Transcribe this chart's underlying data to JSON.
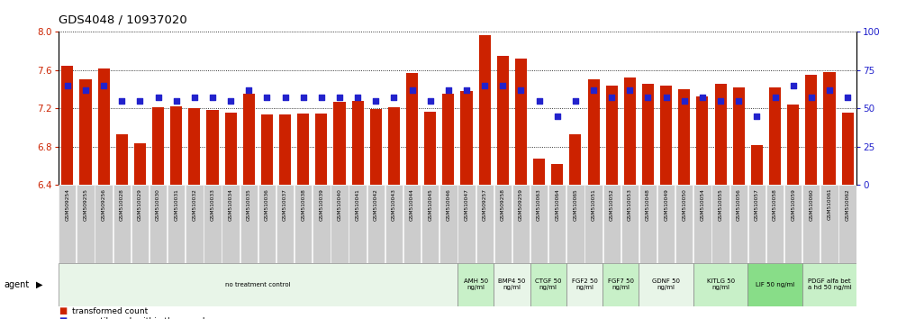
{
  "title": "GDS4048 / 10937020",
  "ylim_left": [
    6.4,
    8.0
  ],
  "ylim_right": [
    0,
    100
  ],
  "yticks_left": [
    6.4,
    6.8,
    7.2,
    7.6,
    8.0
  ],
  "yticks_right": [
    0,
    25,
    50,
    75,
    100
  ],
  "bar_color": "#cc2200",
  "dot_color": "#2222cc",
  "samples": [
    "GSM509254",
    "GSM509255",
    "GSM509256",
    "GSM510028",
    "GSM510029",
    "GSM510030",
    "GSM510031",
    "GSM510032",
    "GSM510033",
    "GSM510034",
    "GSM510035",
    "GSM510036",
    "GSM510037",
    "GSM510038",
    "GSM510039",
    "GSM510040",
    "GSM510041",
    "GSM510042",
    "GSM510043",
    "GSM510044",
    "GSM510045",
    "GSM510046",
    "GSM510047",
    "GSM509257",
    "GSM509258",
    "GSM509259",
    "GSM510063",
    "GSM510064",
    "GSM510065",
    "GSM510051",
    "GSM510052",
    "GSM510053",
    "GSM510048",
    "GSM510049",
    "GSM510050",
    "GSM510054",
    "GSM510055",
    "GSM510056",
    "GSM510057",
    "GSM510058",
    "GSM510059",
    "GSM510060",
    "GSM510061",
    "GSM510062"
  ],
  "bar_values": [
    7.65,
    7.5,
    7.62,
    6.93,
    6.84,
    7.21,
    7.22,
    7.2,
    7.18,
    7.16,
    7.35,
    7.14,
    7.14,
    7.15,
    7.15,
    7.27,
    7.28,
    7.19,
    7.21,
    7.57,
    7.17,
    7.35,
    7.38,
    7.97,
    7.75,
    7.72,
    6.68,
    6.62,
    6.93,
    7.5,
    7.44,
    7.52,
    7.46,
    7.44,
    7.4,
    7.33,
    7.46,
    7.42,
    6.82,
    7.42,
    7.24,
    7.55,
    7.58,
    7.16
  ],
  "dot_values": [
    65,
    62,
    65,
    55,
    55,
    57,
    55,
    57,
    57,
    55,
    62,
    57,
    57,
    57,
    57,
    57,
    57,
    55,
    57,
    62,
    55,
    62,
    62,
    65,
    65,
    62,
    55,
    45,
    55,
    62,
    57,
    62,
    57,
    57,
    55,
    57,
    55,
    55,
    45,
    57,
    65,
    57,
    62,
    57
  ],
  "agent_groups": [
    {
      "label": "no treatment control",
      "start": 0,
      "end": 22,
      "color": "#e8f5e8"
    },
    {
      "label": "AMH 50\nng/ml",
      "start": 22,
      "end": 24,
      "color": "#c8f0c8"
    },
    {
      "label": "BMP4 50\nng/ml",
      "start": 24,
      "end": 26,
      "color": "#e8f5e8"
    },
    {
      "label": "CTGF 50\nng/ml",
      "start": 26,
      "end": 28,
      "color": "#c8f0c8"
    },
    {
      "label": "FGF2 50\nng/ml",
      "start": 28,
      "end": 30,
      "color": "#e8f5e8"
    },
    {
      "label": "FGF7 50\nng/ml",
      "start": 30,
      "end": 32,
      "color": "#c8f0c8"
    },
    {
      "label": "GDNF 50\nng/ml",
      "start": 32,
      "end": 35,
      "color": "#e8f5e8"
    },
    {
      "label": "KITLG 50\nng/ml",
      "start": 35,
      "end": 38,
      "color": "#c8f0c8"
    },
    {
      "label": "LIF 50 ng/ml",
      "start": 38,
      "end": 41,
      "color": "#88dd88"
    },
    {
      "label": "PDGF alfa bet\na hd 50 ng/ml",
      "start": 41,
      "end": 44,
      "color": "#c8f0c8"
    }
  ],
  "bg_color": "#ffffff",
  "plot_bg": "#ffffff",
  "label_bg": "#cccccc",
  "grid_color": "#000000",
  "left_color": "#cc2200",
  "right_color": "#2222cc"
}
